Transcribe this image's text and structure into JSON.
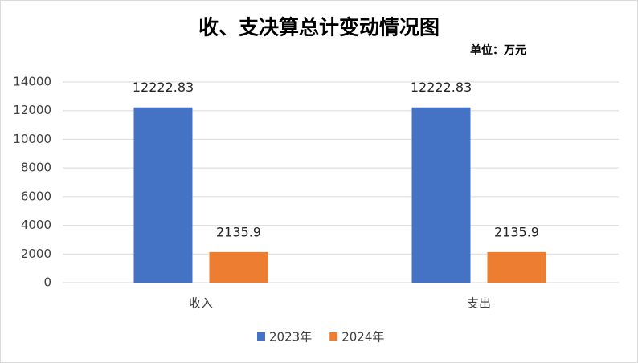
{
  "chart_data": {
    "type": "bar",
    "title": "收、支决算总计变动情况图",
    "subtitle": "单位：万元",
    "categories": [
      "收入",
      "支出"
    ],
    "series": [
      {
        "name": "2023年",
        "color": "#4472c4",
        "values": [
          12222.83,
          12222.83
        ]
      },
      {
        "name": "2024年",
        "color": "#ed7d31",
        "values": [
          2135.9,
          2135.9
        ]
      }
    ],
    "ylim": [
      0,
      14000
    ],
    "yticks": [
      0,
      2000,
      4000,
      6000,
      8000,
      10000,
      12000,
      14000
    ],
    "grid": true,
    "legend": "bottom"
  }
}
